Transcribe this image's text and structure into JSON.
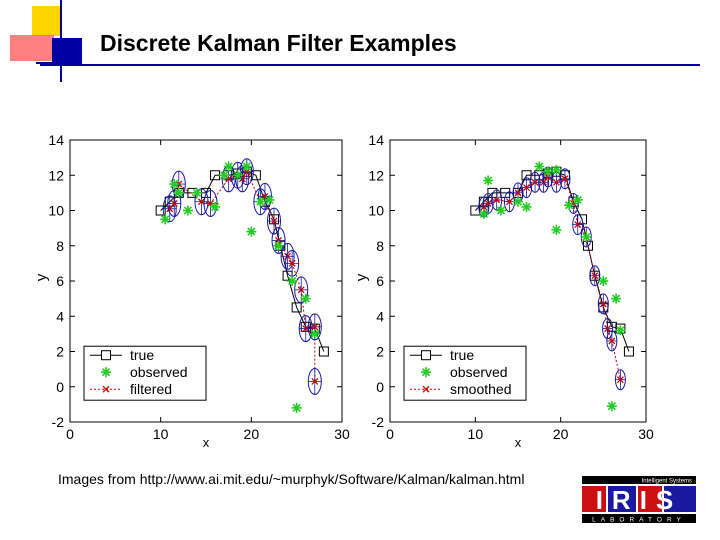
{
  "slide": {
    "title": "Discrete Kalman Filter Examples",
    "caption": "Images from http://www.ai.mit.edu/~murphyk/Software/Kalman/kalman.html"
  },
  "logo": {
    "text": "IRIS",
    "subtitle": "LABORATORY",
    "tagline": "Intelligent Systems"
  },
  "colors": {
    "accent_yellow": "#ffd400",
    "accent_red": "#ff4040",
    "accent_blue": "#0000a0",
    "true": "#000000",
    "observed": "#22cc22",
    "estimate": "#cc0000",
    "ellipse": "#1a1aa0"
  },
  "chart_data": [
    {
      "type": "line",
      "title": "",
      "xlabel": "x",
      "ylabel": "y",
      "xlim": [
        0,
        30
      ],
      "ylim": [
        -2,
        14
      ],
      "xticks": [
        0,
        10,
        20,
        30
      ],
      "yticks": [
        -2,
        0,
        2,
        4,
        6,
        8,
        10,
        12,
        14
      ],
      "legend_position": "bottom-left",
      "series": [
        {
          "name": "true",
          "x": [
            10,
            11,
            12,
            13.5,
            15,
            16,
            17.5,
            18.5,
            19.5,
            20.5,
            21.5,
            22.5,
            23.2,
            24,
            25,
            26,
            27,
            28
          ],
          "y": [
            10,
            10.5,
            11,
            11,
            11,
            12,
            12,
            12.1,
            12.2,
            12,
            10.5,
            9.5,
            8,
            6.3,
            4.5,
            3.4,
            3.3,
            2
          ]
        },
        {
          "name": "observed",
          "x": [
            10.5,
            11.5,
            12,
            13,
            14,
            16,
            17,
            17.5,
            18.5,
            19.5,
            20,
            21,
            22,
            23,
            24.5,
            26,
            27,
            25
          ],
          "y": [
            9.5,
            11.5,
            11,
            10,
            11,
            10.2,
            12,
            12.5,
            12,
            12.5,
            8.8,
            10.5,
            10.6,
            8,
            6,
            5,
            3,
            -1.2
          ]
        },
        {
          "name": "filtered",
          "x": [
            11,
            11.5,
            12,
            14.5,
            15.5,
            17.5,
            18.5,
            19,
            19.5,
            21,
            21.5,
            22.5,
            23,
            24,
            24.5,
            25.5,
            26,
            27,
            27
          ],
          "y": [
            10.1,
            10.4,
            11.5,
            10.5,
            10.4,
            11.8,
            12,
            11.8,
            12.2,
            10.5,
            10.8,
            9.4,
            8.3,
            7.4,
            7.0,
            5.5,
            3.3,
            3.4,
            0.3
          ]
        }
      ]
    },
    {
      "type": "line",
      "title": "",
      "xlabel": "x",
      "ylabel": "y",
      "xlim": [
        0,
        30
      ],
      "ylim": [
        -2,
        14
      ],
      "xticks": [
        0,
        10,
        20,
        30
      ],
      "yticks": [
        -2,
        0,
        2,
        4,
        6,
        8,
        10,
        12,
        14
      ],
      "legend_position": "bottom-left",
      "series": [
        {
          "name": "true",
          "x": [
            10,
            11,
            12,
            13.5,
            15,
            16,
            17.5,
            18.5,
            19.5,
            20.5,
            21.5,
            22.5,
            23.2,
            24,
            25,
            26,
            27,
            28
          ],
          "y": [
            10,
            10.5,
            11,
            11,
            11,
            12,
            12,
            12.1,
            12.2,
            12,
            10.5,
            9.5,
            8,
            6.3,
            4.5,
            3.4,
            3.3,
            2
          ]
        },
        {
          "name": "observed",
          "x": [
            11,
            11.5,
            13,
            15,
            16,
            17.5,
            18.5,
            19.5,
            19.5,
            21,
            22,
            23,
            25,
            26.5,
            27,
            26
          ],
          "y": [
            9.8,
            11.7,
            10,
            10.5,
            10.2,
            12.5,
            12.2,
            12.3,
            8.9,
            10.3,
            10.6,
            8.5,
            6,
            5,
            3.2,
            -1.1
          ]
        },
        {
          "name": "smoothed",
          "x": [
            11,
            11.5,
            12.5,
            14,
            15,
            16,
            17,
            18,
            18.5,
            19.5,
            20.5,
            21.5,
            22,
            23,
            24,
            25,
            25.5,
            26,
            27
          ],
          "y": [
            10.2,
            10.4,
            10.6,
            10.5,
            11,
            11.3,
            11.6,
            11.6,
            11.9,
            11.6,
            11.8,
            10.4,
            9.2,
            8.5,
            6.3,
            4.7,
            3.3,
            2.6,
            0.4
          ]
        }
      ]
    }
  ]
}
